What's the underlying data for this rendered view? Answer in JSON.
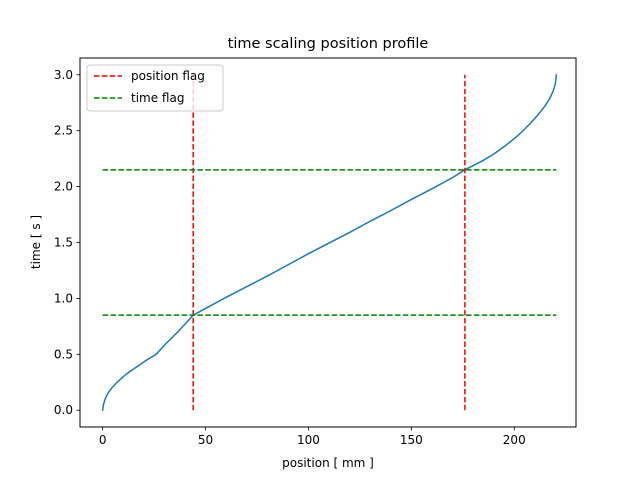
{
  "chart_data": {
    "type": "line",
    "title": "time scaling position profile",
    "xlabel": "position [ mm ]",
    "ylabel": "time [ s ]",
    "xlim": [
      -11,
      230
    ],
    "ylim": [
      -0.15,
      3.15
    ],
    "xticks": [
      0,
      50,
      100,
      150,
      200
    ],
    "yticks": [
      0.0,
      0.5,
      1.0,
      1.5,
      2.0,
      2.5,
      3.0
    ],
    "xtick_labels": [
      "0",
      "50",
      "100",
      "150",
      "200"
    ],
    "ytick_labels": [
      "0.0",
      "0.5",
      "1.0",
      "1.5",
      "2.0",
      "2.5",
      "3.0"
    ],
    "grid": false,
    "legend_position": "top-left",
    "series": [
      {
        "kind": "curve",
        "color": "#1f77b4",
        "style": "solid",
        "points": [
          [
            0.0,
            0.0
          ],
          [
            0.4,
            0.05
          ],
          [
            1.2,
            0.1
          ],
          [
            2.5,
            0.15
          ],
          [
            4.5,
            0.2
          ],
          [
            7.0,
            0.25
          ],
          [
            10.0,
            0.3
          ],
          [
            13.5,
            0.35
          ],
          [
            17.5,
            0.4
          ],
          [
            21.5,
            0.45
          ],
          [
            26.0,
            0.5
          ],
          [
            31.0,
            0.6
          ],
          [
            36.5,
            0.7
          ],
          [
            40.5,
            0.78
          ],
          [
            44.0,
            0.85
          ],
          [
            50.0,
            0.91
          ],
          [
            60.0,
            1.01
          ],
          [
            70.0,
            1.105
          ],
          [
            80.0,
            1.2
          ],
          [
            90.0,
            1.3
          ],
          [
            100.0,
            1.4
          ],
          [
            110.0,
            1.495
          ],
          [
            120.0,
            1.59
          ],
          [
            130.0,
            1.69
          ],
          [
            140.0,
            1.785
          ],
          [
            150.0,
            1.885
          ],
          [
            160.0,
            1.98
          ],
          [
            170.0,
            2.08
          ],
          [
            176.0,
            2.15
          ],
          [
            184.0,
            2.225
          ],
          [
            190.0,
            2.29
          ],
          [
            196.0,
            2.37
          ],
          [
            202.0,
            2.46
          ],
          [
            207.0,
            2.55
          ],
          [
            211.0,
            2.63
          ],
          [
            214.5,
            2.71
          ],
          [
            217.0,
            2.78
          ],
          [
            218.8,
            2.85
          ],
          [
            219.7,
            2.9
          ],
          [
            220.2,
            2.95
          ],
          [
            220.4,
            3.0
          ]
        ]
      },
      {
        "name": "position flag",
        "kind": "vline",
        "color": "#ff0000",
        "style": "dashed",
        "x": 44.0,
        "y_range": [
          0.0,
          3.0
        ]
      },
      {
        "name": "position flag",
        "kind": "vline",
        "color": "#ff0000",
        "style": "dashed",
        "x": 176.0,
        "y_range": [
          0.0,
          3.0
        ]
      },
      {
        "name": "time flag",
        "kind": "hline",
        "color": "#008000",
        "style": "dashed",
        "y": 0.85,
        "x_range": [
          0.0,
          220.4
        ]
      },
      {
        "name": "time flag",
        "kind": "hline",
        "color": "#008000",
        "style": "dashed",
        "y": 2.15,
        "x_range": [
          0.0,
          220.4
        ]
      }
    ],
    "legend": [
      {
        "label": "position flag",
        "color": "#ff0000",
        "style": "dashed"
      },
      {
        "label": "time flag",
        "color": "#008000",
        "style": "dashed"
      }
    ]
  }
}
